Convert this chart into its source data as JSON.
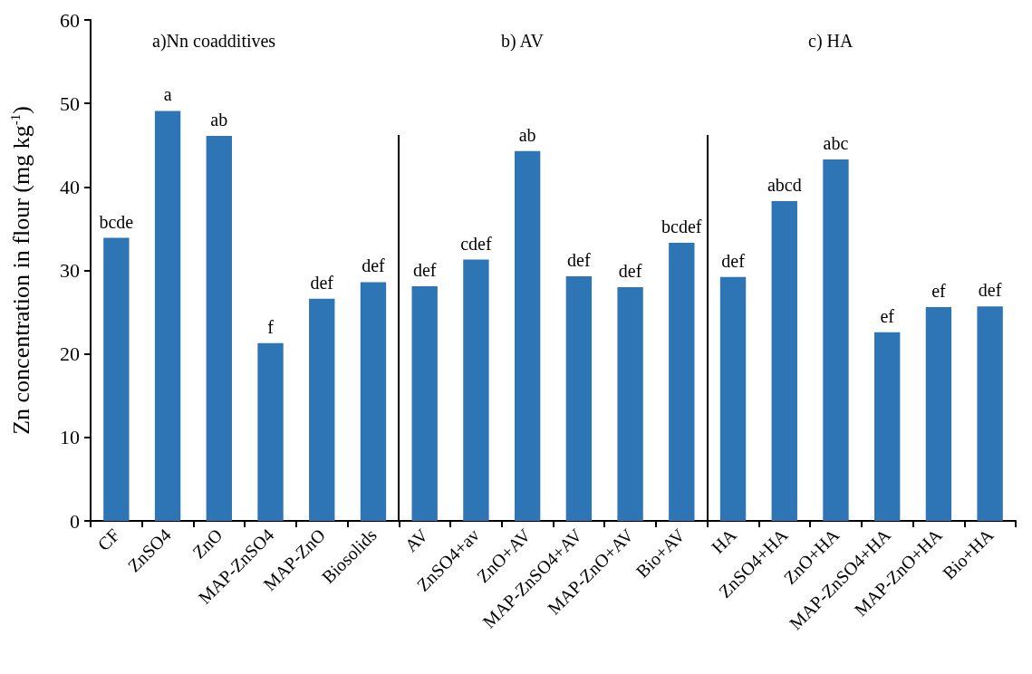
{
  "chart_data": {
    "type": "bar",
    "ylabel": "Zn concentration in flour (mg kg$^{-1}$)",
    "categories": [
      "CF",
      "ZnSO4",
      "ZnO",
      "MAP-ZnSO4",
      "MAP-ZnO",
      "Biosolids",
      "AV",
      "ZnSO4+av",
      "ZnO+AV",
      "MAP-ZnSO4+AV",
      "MAP-ZnO+AV",
      "Bio+AV",
      "HA",
      "ZnSO4+HA",
      "ZnO+HA",
      "MAP-ZnSO4+HA",
      "MAP-ZnO+HA",
      "Bio+HA"
    ],
    "values": [
      33.9,
      49.1,
      46.1,
      21.3,
      26.6,
      28.6,
      28.1,
      31.3,
      44.3,
      29.3,
      28.0,
      33.3,
      29.2,
      38.3,
      43.3,
      22.6,
      25.6,
      25.7
    ],
    "value_labels": [
      "bcde",
      "a",
      "ab",
      "f",
      "def",
      "def",
      "def",
      "cdef",
      "ab",
      "def",
      "def",
      "bcdef",
      "def",
      "abcd",
      "abc",
      "ef",
      "ef",
      "def"
    ],
    "color": "#2e75b6",
    "ylim": [
      0,
      60
    ],
    "yticks": [
      0,
      10,
      20,
      30,
      40,
      50,
      60
    ],
    "grid": false,
    "annotations": [
      "a)Nn coadditives",
      "b) AV",
      "c) HA"
    ]
  }
}
